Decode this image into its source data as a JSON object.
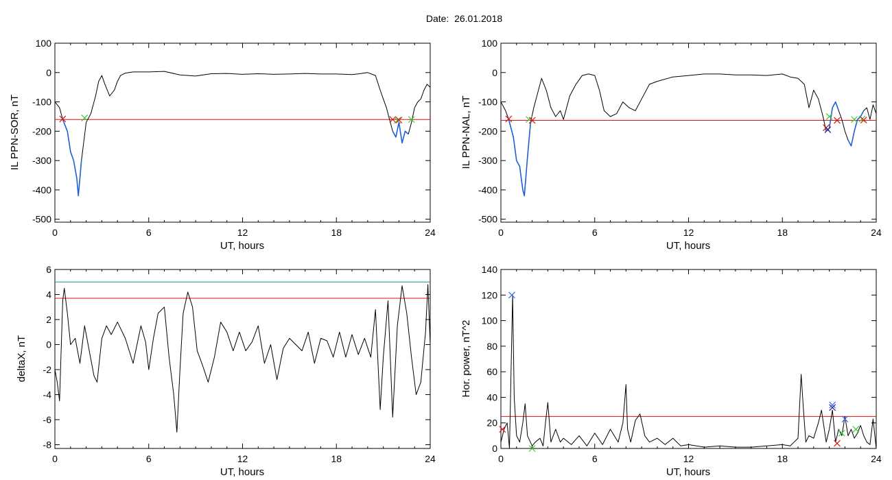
{
  "header": {
    "date_label": "Date:",
    "date_value": "26.01.2018"
  },
  "colors": {
    "trace": "#000000",
    "highlight": "#1f5fd6",
    "threshold": "#dd1111",
    "cyan_line": "#1a8f8f",
    "green_mark": "#33cc33",
    "red_mark": "#dd1111",
    "blue_mark": "#3366ff",
    "navy_mark": "#1a2a8a"
  },
  "chart_data": [
    {
      "id": "ppn-sor",
      "type": "line",
      "xlabel": "UT, hours",
      "ylabel": "IL PPN-SOR, nT",
      "xlim": [
        0,
        24
      ],
      "ylim": [
        -510,
        100
      ],
      "xticks": [
        0,
        6,
        12,
        18,
        24
      ],
      "yticks": [
        100,
        0,
        -100,
        -200,
        -300,
        -400,
        -500
      ],
      "threshold": -160,
      "series": [
        {
          "x": [
            0,
            0.3,
            0.5,
            0.8,
            1.0,
            1.2,
            1.4,
            1.5,
            1.7,
            2.0,
            2.3,
            2.6,
            2.8,
            3.0,
            3.2,
            3.5,
            3.8,
            4.0,
            4.2,
            4.5,
            5.0,
            6.0,
            7.0,
            8.0,
            9.0,
            10.0,
            11.0,
            12.0,
            13.0,
            14.0,
            15.0,
            16.0,
            17.0,
            18.0,
            19.0,
            19.5,
            20.0,
            20.5,
            20.8,
            21.0,
            21.2,
            21.4,
            21.6,
            21.8,
            22.0,
            22.2,
            22.4,
            22.6,
            22.8,
            23.0,
            23.2,
            23.4,
            23.6,
            23.8,
            24.0
          ],
          "y": [
            -100,
            -120,
            -160,
            -200,
            -270,
            -300,
            -360,
            -420,
            -300,
            -170,
            -140,
            -80,
            -30,
            -10,
            -40,
            -80,
            -60,
            -30,
            -10,
            -2,
            2,
            2,
            4,
            -8,
            -12,
            -4,
            -3,
            -6,
            -4,
            -6,
            -5,
            -3,
            -5,
            -5,
            -7,
            -4,
            0,
            -10,
            -60,
            -90,
            -120,
            -160,
            -200,
            -220,
            -170,
            -240,
            -200,
            -210,
            -170,
            -120,
            -100,
            -90,
            -60,
            -40,
            -50
          ]
        }
      ],
      "highlight_ranges": [
        [
          0.5,
          1.95
        ],
        [
          21.6,
          22.7
        ]
      ],
      "markers": [
        {
          "x": 0.5,
          "y": -158,
          "color": "red"
        },
        {
          "x": 1.9,
          "y": -155,
          "color": "green"
        },
        {
          "x": 21.6,
          "y": -160,
          "color": "red"
        },
        {
          "x": 21.9,
          "y": -163,
          "color": "green"
        },
        {
          "x": 22.0,
          "y": -162,
          "color": "red"
        },
        {
          "x": 22.8,
          "y": -160,
          "color": "green"
        }
      ]
    },
    {
      "id": "ppn-nal",
      "type": "line",
      "xlabel": "UT, hours",
      "ylabel": "IL PPN-NAL, nT",
      "xlim": [
        0,
        24
      ],
      "ylim": [
        -510,
        100
      ],
      "xticks": [
        0,
        6,
        12,
        18,
        24
      ],
      "yticks": [
        100,
        0,
        -100,
        -200,
        -300,
        -400,
        -500
      ],
      "threshold": -163,
      "series": [
        {
          "x": [
            0,
            0.3,
            0.5,
            0.8,
            1.0,
            1.2,
            1.4,
            1.5,
            1.7,
            1.9,
            2.1,
            2.4,
            2.6,
            2.9,
            3.2,
            3.5,
            3.8,
            4.0,
            4.4,
            4.8,
            5.2,
            5.6,
            6.0,
            6.3,
            6.6,
            7.0,
            7.4,
            7.8,
            8.2,
            8.6,
            9.0,
            9.5,
            10.0,
            11.0,
            12.0,
            13.0,
            14.0,
            15.0,
            16.0,
            17.0,
            18.0,
            18.5,
            19.0,
            19.4,
            19.7,
            20.0,
            20.3,
            20.6,
            20.8,
            21.0,
            21.2,
            21.4,
            21.6,
            21.8,
            22.0,
            22.2,
            22.4,
            22.6,
            22.8,
            23.0,
            23.2,
            23.4,
            23.6,
            23.8,
            24.0
          ],
          "y": [
            -100,
            -130,
            -160,
            -220,
            -300,
            -320,
            -400,
            -420,
            -290,
            -170,
            -120,
            -60,
            -20,
            -60,
            -120,
            -150,
            -130,
            -160,
            -80,
            -40,
            -10,
            -5,
            -10,
            -60,
            -130,
            -150,
            -140,
            -100,
            -120,
            -130,
            -90,
            -40,
            -30,
            -15,
            -10,
            -5,
            -5,
            -8,
            -8,
            -10,
            -5,
            -15,
            -20,
            -40,
            -120,
            -60,
            -90,
            -150,
            -200,
            -190,
            -120,
            -100,
            -130,
            -160,
            -200,
            -230,
            -250,
            -200,
            -160,
            -150,
            -130,
            -120,
            -160,
            -110,
            -140
          ]
        }
      ],
      "highlight_ranges": [
        [
          0.5,
          1.95
        ],
        [
          20.8,
          21.6
        ],
        [
          22.2,
          23.2
        ]
      ],
      "markers": [
        {
          "x": 0.5,
          "y": -158,
          "color": "red"
        },
        {
          "x": 1.8,
          "y": -160,
          "color": "green"
        },
        {
          "x": 2.0,
          "y": -163,
          "color": "red"
        },
        {
          "x": 20.8,
          "y": -188,
          "color": "red"
        },
        {
          "x": 20.9,
          "y": -195,
          "color": "navy"
        },
        {
          "x": 21.0,
          "y": -150,
          "color": "green"
        },
        {
          "x": 21.5,
          "y": -163,
          "color": "red"
        },
        {
          "x": 22.6,
          "y": -160,
          "color": "green"
        },
        {
          "x": 23.1,
          "y": -158,
          "color": "green"
        },
        {
          "x": 23.2,
          "y": -162,
          "color": "red"
        }
      ]
    },
    {
      "id": "deltax",
      "type": "line",
      "xlabel": "UT, hours",
      "ylabel": "deltaX, nT",
      "xlim": [
        0,
        24
      ],
      "ylim": [
        -8.3,
        6
      ],
      "xticks": [
        0,
        6,
        12,
        18,
        24
      ],
      "yticks": [
        6,
        4,
        2,
        0,
        -2,
        -4,
        -6,
        -8
      ],
      "hlines": [
        {
          "y": 5.0,
          "color": "cyan"
        },
        {
          "y": 3.7,
          "color": "red"
        }
      ],
      "series": [
        {
          "x": [
            0,
            0.15,
            0.3,
            0.5,
            0.6,
            0.8,
            1.0,
            1.3,
            1.6,
            1.9,
            2.2,
            2.5,
            2.7,
            3.0,
            3.3,
            3.6,
            4.0,
            4.5,
            5.0,
            5.5,
            5.8,
            6.0,
            6.3,
            6.6,
            7.0,
            7.3,
            7.6,
            7.8,
            8.0,
            8.2,
            8.5,
            8.8,
            9.1,
            9.4,
            9.8,
            10.2,
            10.6,
            11.0,
            11.4,
            11.8,
            12.2,
            12.6,
            13.0,
            13.4,
            13.8,
            14.2,
            14.6,
            15.0,
            15.4,
            15.8,
            16.2,
            16.6,
            17.0,
            17.4,
            17.8,
            18.2,
            18.6,
            19.0,
            19.4,
            19.8,
            20.2,
            20.5,
            20.8,
            21.0,
            21.3,
            21.6,
            21.9,
            22.2,
            22.5,
            22.8,
            23.1,
            23.4,
            23.7,
            23.85,
            24.0
          ],
          "y": [
            -2,
            -3,
            -4.5,
            3.5,
            4.5,
            2.5,
            0,
            0.5,
            -1.5,
            1.5,
            -0.5,
            -2.5,
            -3,
            0.5,
            1.5,
            0.8,
            1.8,
            0.5,
            -1.5,
            1.5,
            0.2,
            -2,
            0.5,
            2.5,
            3,
            -1,
            -4,
            -7,
            -2,
            2.5,
            4.2,
            3,
            -0.5,
            -1.5,
            -3,
            -1,
            1.8,
            1,
            -0.5,
            1,
            -0.5,
            0.2,
            1.5,
            -1.5,
            0,
            -2.8,
            -0.3,
            0.5,
            0,
            -0.5,
            1,
            -1.5,
            0.5,
            0.3,
            -1,
            1,
            -1,
            0.8,
            -0.8,
            0.5,
            -1,
            2.8,
            -5.2,
            -1,
            3.5,
            -5.8,
            1.5,
            4.7,
            2.5,
            -1,
            -4,
            -3,
            1,
            4.8,
            0
          ]
        }
      ]
    },
    {
      "id": "hor-power",
      "type": "line",
      "xlabel": "UT, hours",
      "ylabel": "Hor. power, nT^2",
      "xlim": [
        0,
        24
      ],
      "ylim": [
        0,
        140
      ],
      "xticks": [
        0,
        6,
        12,
        18,
        24
      ],
      "yticks": [
        140,
        120,
        100,
        80,
        60,
        40,
        20,
        0
      ],
      "threshold": 25,
      "series": [
        {
          "x": [
            0,
            0.2,
            0.4,
            0.55,
            0.65,
            0.75,
            0.85,
            1.0,
            1.2,
            1.4,
            1.55,
            1.7,
            2.0,
            2.2,
            2.5,
            2.7,
            2.85,
            3.0,
            3.2,
            3.5,
            3.8,
            4.0,
            4.5,
            5.0,
            5.5,
            6.0,
            6.5,
            7.0,
            7.5,
            7.8,
            8.0,
            8.1,
            8.3,
            8.6,
            8.9,
            9.2,
            9.5,
            10.0,
            10.5,
            11.0,
            11.5,
            12.0,
            13.0,
            14.0,
            15.0,
            16.0,
            17.0,
            18.0,
            18.5,
            19.0,
            19.2,
            19.35,
            19.5,
            19.7,
            20.0,
            20.3,
            20.5,
            20.8,
            21.0,
            21.2,
            21.4,
            21.6,
            21.8,
            22.0,
            22.2,
            22.4,
            22.6,
            22.8,
            23.0,
            23.2,
            23.4,
            23.6,
            23.8,
            24.0
          ],
          "y": [
            5,
            15,
            20,
            0,
            60,
            120,
            40,
            10,
            5,
            20,
            35,
            10,
            2,
            5,
            8,
            2,
            20,
            36,
            5,
            15,
            5,
            8,
            3,
            10,
            2,
            12,
            3,
            15,
            5,
            20,
            50,
            15,
            5,
            22,
            27,
            10,
            5,
            8,
            3,
            8,
            2,
            3,
            1,
            2,
            1,
            1,
            2,
            3,
            2,
            8,
            58,
            30,
            5,
            10,
            8,
            20,
            30,
            5,
            15,
            30,
            5,
            15,
            10,
            25,
            10,
            15,
            8,
            12,
            18,
            10,
            5,
            3,
            23,
            0
          ]
        }
      ],
      "markers": [
        {
          "x": 0.1,
          "y": 15,
          "color": "red"
        },
        {
          "x": 0.7,
          "y": 120,
          "color": "blue"
        },
        {
          "x": 2.0,
          "y": 0,
          "color": "green"
        },
        {
          "x": 21.2,
          "y": 34,
          "color": "blue"
        },
        {
          "x": 21.2,
          "y": 32,
          "color": "navy"
        },
        {
          "x": 21.5,
          "y": 4,
          "color": "red"
        },
        {
          "x": 21.8,
          "y": 12,
          "color": "green"
        },
        {
          "x": 22.0,
          "y": 23,
          "color": "blue"
        },
        {
          "x": 22.7,
          "y": 15,
          "color": "green"
        }
      ]
    }
  ]
}
